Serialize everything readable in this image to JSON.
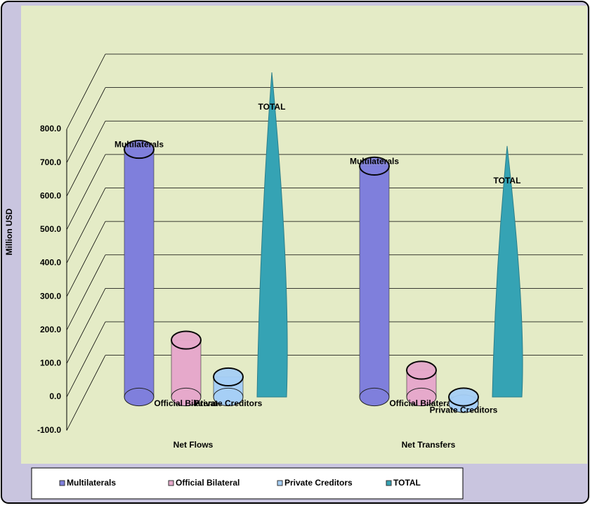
{
  "chart_data": {
    "type": "bar",
    "y_label": "Million USD",
    "categories": [
      "Net Flows",
      "Net Transfers"
    ],
    "series": [
      {
        "name": "Multilaterals",
        "color": "#7f7fdc",
        "values": [
          740,
          690
        ]
      },
      {
        "name": "Official Bilateral",
        "color": "#e6a9cb",
        "values": [
          170,
          80
        ]
      },
      {
        "name": "Private Creditors",
        "color": "#a6cff6",
        "values": [
          60,
          -20
        ]
      },
      {
        "name": "TOTAL",
        "color": "#35a3b4",
        "values": [
          970,
          750
        ]
      }
    ],
    "ylim": [
      -100,
      1000
    ],
    "yticks": [
      {
        "value": -100,
        "label": "-100.0"
      },
      {
        "value": 0,
        "label": "0.0"
      },
      {
        "value": 100,
        "label": "100.0"
      },
      {
        "value": 200,
        "label": "200.0"
      },
      {
        "value": 300,
        "label": "300.0"
      },
      {
        "value": 400,
        "label": "400.0"
      },
      {
        "value": 500,
        "label": "500.0"
      },
      {
        "value": 600,
        "label": "600.0"
      },
      {
        "value": 700,
        "label": "700.0"
      },
      {
        "value": 800,
        "label": "800.0"
      }
    ],
    "grid": true
  }
}
